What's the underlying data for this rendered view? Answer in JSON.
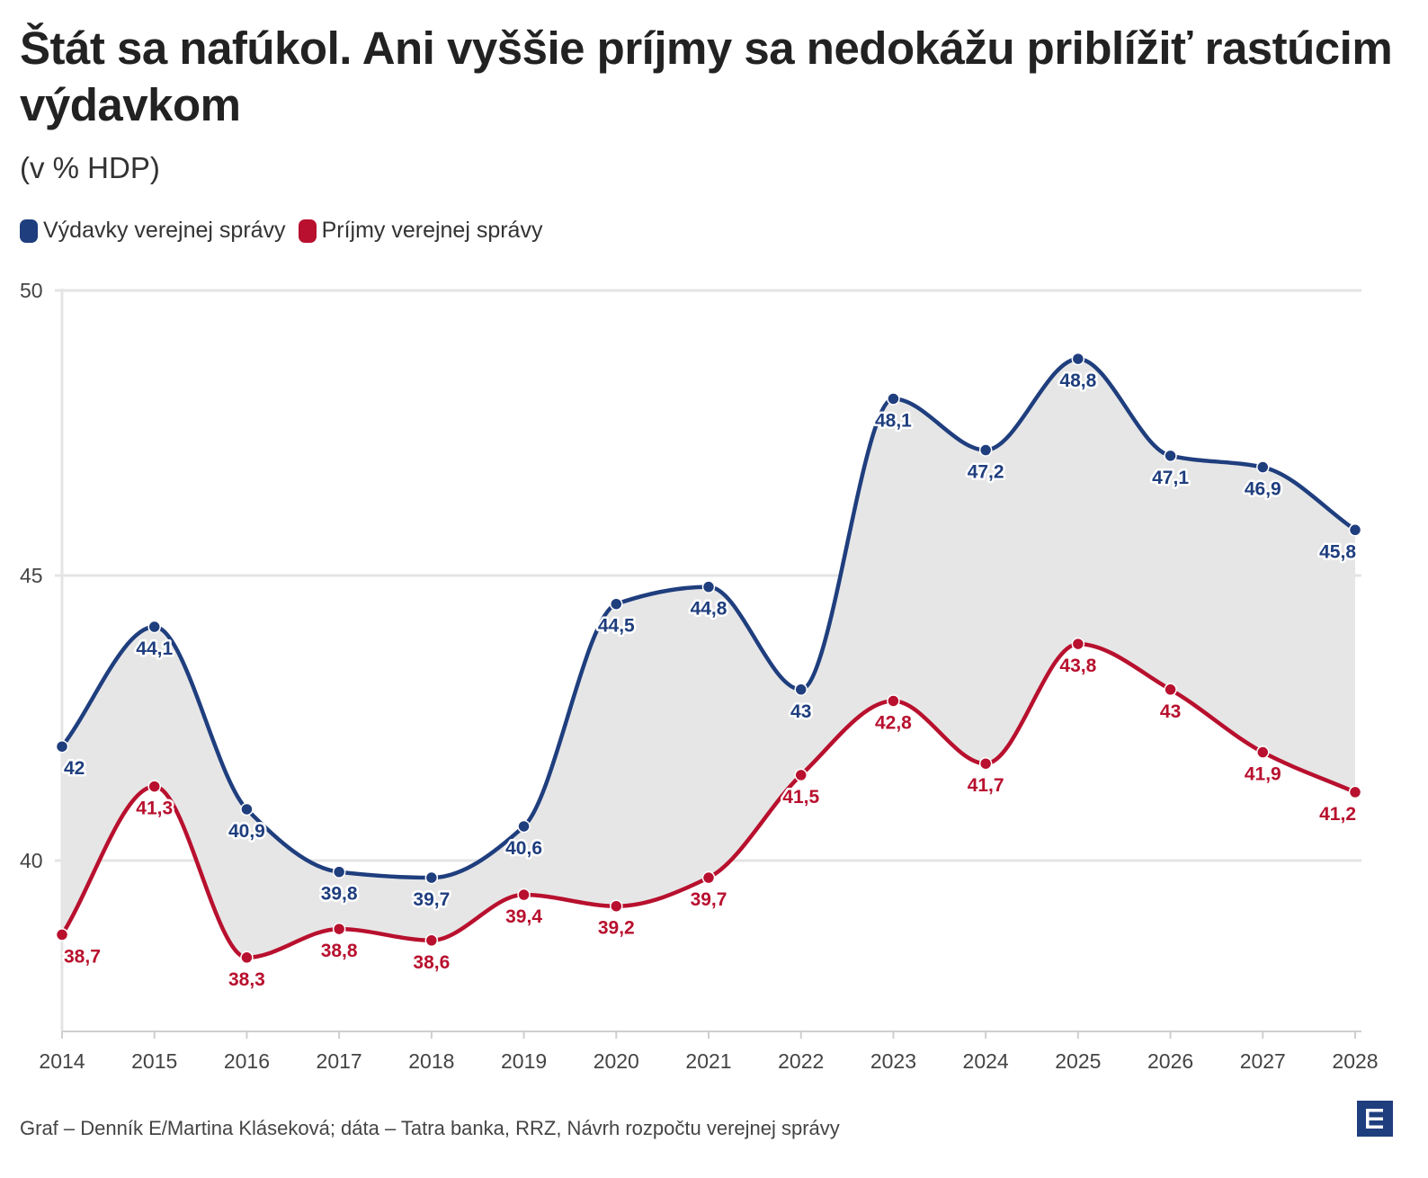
{
  "title": "Štát sa nafúkol. Ani vyššie príjmy sa nedokážu priblížiť rastúcim výdavkom",
  "subtitle": "(v % HDP)",
  "footer": "Graf – Denník E/Martina Kláseková; dáta – Tatra banka, RRZ, Návrh rozpočtu verejnej správy",
  "colors": {
    "expenditure": "#1f3e7e",
    "revenue": "#b8102e",
    "gap_fill": "#e6e6e6",
    "grid": "#e4e4e4"
  },
  "chart_data": {
    "type": "line",
    "x": [
      "2014",
      "2015",
      "2016",
      "2017",
      "2018",
      "2019",
      "2020",
      "2021",
      "2022",
      "2023",
      "2024",
      "2025",
      "2026",
      "2027",
      "2028"
    ],
    "series": [
      {
        "name": "Výdavky verejnej správy",
        "color": "#1f3e7e",
        "values": [
          42,
          44.1,
          40.9,
          39.8,
          39.7,
          40.6,
          44.5,
          44.8,
          43,
          48.1,
          47.2,
          48.8,
          47.1,
          46.9,
          45.8
        ],
        "labels": [
          "42",
          "44,1",
          "40,9",
          "39,8",
          "39,7",
          "40,6",
          "44,5",
          "44,8",
          "43",
          "48,1",
          "47,2",
          "48,8",
          "47,1",
          "46,9",
          "45,8"
        ]
      },
      {
        "name": "Príjmy verejnej správy",
        "color": "#b8102e",
        "values": [
          38.7,
          41.3,
          38.3,
          38.8,
          38.6,
          39.4,
          39.2,
          39.7,
          41.5,
          42.8,
          41.7,
          43.8,
          43,
          41.9,
          41.2
        ],
        "labels": [
          "38,7",
          "41,3",
          "38,3",
          "38,8",
          "38,6",
          "39,4",
          "39,2",
          "39,7",
          "41,5",
          "42,8",
          "41,7",
          "43,8",
          "43",
          "41,9",
          "41,2"
        ]
      }
    ],
    "yticks": [
      "40",
      "45",
      "50"
    ],
    "ylim": [
      37,
      50
    ],
    "grid": true,
    "legend_position": "top-left",
    "fill_between": true
  }
}
